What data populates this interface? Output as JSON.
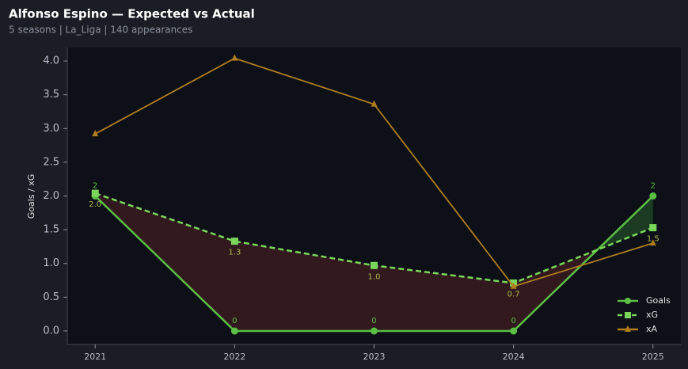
{
  "chart_data": {
    "type": "line",
    "title": "Alfonso Espino — Expected vs Actual",
    "subtitle": "5 seasons | La_Liga | 140 appearances",
    "y_label": "Goals / xG",
    "x": [
      2021,
      2022,
      2023,
      2024,
      2025
    ],
    "xlim": [
      2020.8,
      2025.2
    ],
    "xticks": [
      2021,
      2022,
      2023,
      2024,
      2025
    ],
    "ylim": [
      -0.2,
      4.2
    ],
    "yticks": [
      {
        "value": 0,
        "label": "0.0"
      },
      0.5,
      {
        "value": 1,
        "label": "1.0"
      },
      1.5,
      {
        "value": 2,
        "label": "2.0"
      },
      2.5,
      {
        "value": 3,
        "label": "3.0"
      },
      3.5,
      {
        "value": 4,
        "label": "4.0"
      }
    ],
    "legend": "lower right",
    "series": [
      {
        "name": "Goals",
        "color": "#5cbf45",
        "marker": "circle",
        "dash": false,
        "values": [
          2,
          0,
          0,
          0,
          2
        ]
      },
      {
        "name": "xG",
        "color": "#7ad65a",
        "marker": "square",
        "dash": true,
        "values": [
          2.04,
          1.33,
          0.97,
          0.71,
          1.53
        ],
        "value_labels": [
          "2.0",
          "1.3",
          "1.0",
          "0.7",
          "1.5"
        ]
      },
      {
        "name": "xA",
        "color": "#b07d1f",
        "marker": "triangle",
        "dash": false,
        "values": [
          2.92,
          4.04,
          3.36,
          0.66,
          1.3
        ]
      }
    ]
  }
}
